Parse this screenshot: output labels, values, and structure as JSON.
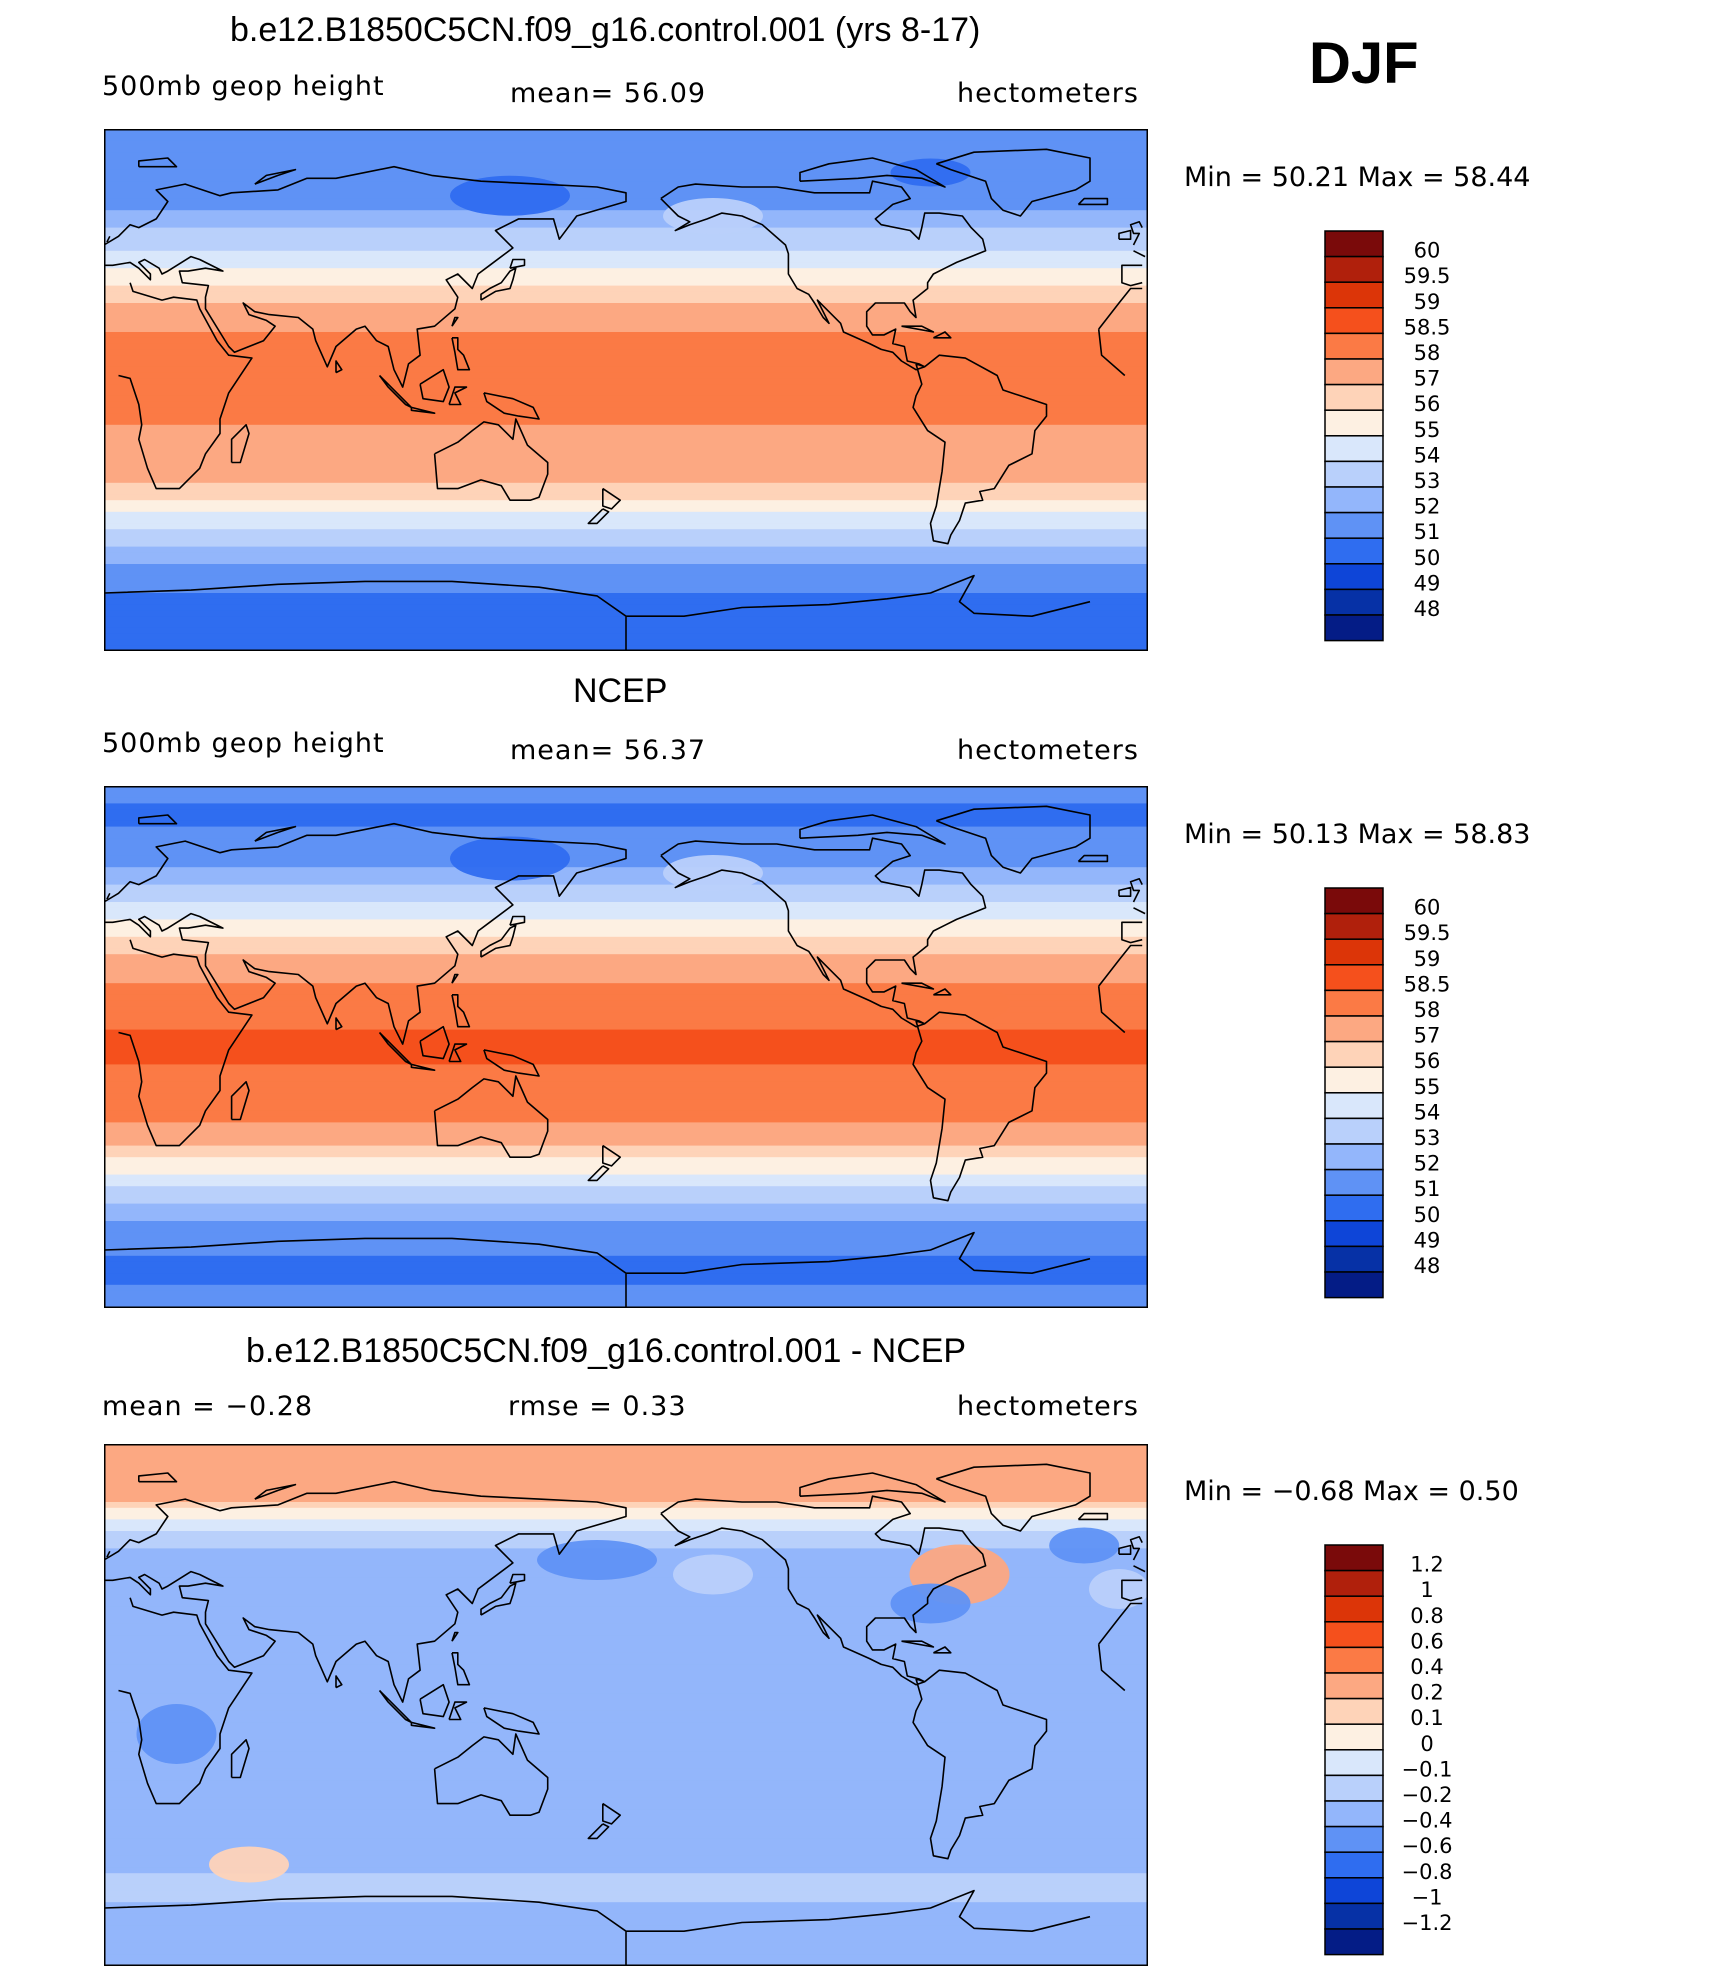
{
  "season": "DJF",
  "panels": [
    {
      "title": "b.e12.B1850C5CN.f09_g16.control.001 (yrs 8-17)",
      "left_label": "500mb  geop  height",
      "center_label": "mean=   56.09",
      "right_label": "hectometers",
      "min_max": "Min  =    50.21  Max  =    58.44"
    },
    {
      "title": "NCEP",
      "left_label": "500mb  geop  height",
      "center_label": "mean=   56.37",
      "right_label": "hectometers",
      "min_max": "Min  =    50.13  Max  =    58.83"
    },
    {
      "title": "b.e12.B1850C5CN.f09_g16.control.001 - NCEP",
      "left_label": "mean  =    −0.28",
      "center_label": "rmse  =     0.33",
      "right_label": "hectometers",
      "min_max": "Min  =    −0.68  Max  =      0.50"
    }
  ],
  "chart_data": [
    {
      "type": "heatmap",
      "title": "b.e12.B1850C5CN.f09_g16.control.001 (yrs 8-17)",
      "variable": "500mb geop height",
      "units": "hectometers",
      "mean": 56.09,
      "min": 50.21,
      "max": 58.44,
      "colorbar": {
        "labels": [
          "60",
          "59.5",
          "59",
          "58.5",
          "58",
          "57",
          "56",
          "55",
          "54",
          "53",
          "52",
          "51",
          "50",
          "49",
          "48"
        ],
        "colors": [
          "#7a0a0a",
          "#b0200c",
          "#dc3508",
          "#f5501c",
          "#fb7a45",
          "#fca882",
          "#fed3b8",
          "#fdf0e2",
          "#d9e7fb",
          "#b9d0fb",
          "#93b6fb",
          "#5f92f5",
          "#2f6df0",
          "#0e45d8",
          "#0631a6",
          "#041c86"
        ]
      },
      "latitude_bands_south_to_north": [
        {
          "lat": -90,
          "value": 51.0
        },
        {
          "lat": -75,
          "value": 50.6
        },
        {
          "lat": -62,
          "value": 51.6
        },
        {
          "lat": -50,
          "value": 53.5
        },
        {
          "lat": -42,
          "value": 55.2
        },
        {
          "lat": -35,
          "value": 56.6
        },
        {
          "lat": -25,
          "value": 57.8
        },
        {
          "lat": 0,
          "value": 58.2
        },
        {
          "lat": 18,
          "value": 58.1
        },
        {
          "lat": 28,
          "value": 57.3
        },
        {
          "lat": 35,
          "value": 56.2
        },
        {
          "lat": 45,
          "value": 54.6
        },
        {
          "lat": 55,
          "value": 53.0
        },
        {
          "lat": 65,
          "value": 51.6
        },
        {
          "lat": 80,
          "value": 51.1
        },
        {
          "lat": 90,
          "value": 51.6
        }
      ]
    },
    {
      "type": "heatmap",
      "title": "NCEP",
      "variable": "500mb geop height",
      "units": "hectometers",
      "mean": 56.37,
      "min": 50.13,
      "max": 58.83,
      "colorbar": {
        "labels": [
          "60",
          "59.5",
          "59",
          "58.5",
          "58",
          "57",
          "56",
          "55",
          "54",
          "53",
          "52",
          "51",
          "50",
          "49",
          "48"
        ],
        "colors": [
          "#7a0a0a",
          "#b0200c",
          "#dc3508",
          "#f5501c",
          "#fb7a45",
          "#fca882",
          "#fed3b8",
          "#fdf0e2",
          "#d9e7fb",
          "#b9d0fb",
          "#93b6fb",
          "#5f92f5",
          "#2f6df0",
          "#0e45d8",
          "#0631a6",
          "#041c86"
        ]
      },
      "latitude_bands_south_to_north": [
        {
          "lat": -90,
          "value": 51.2
        },
        {
          "lat": -75,
          "value": 50.8
        },
        {
          "lat": -62,
          "value": 51.8
        },
        {
          "lat": -50,
          "value": 53.6
        },
        {
          "lat": -42,
          "value": 55.3
        },
        {
          "lat": -35,
          "value": 56.7
        },
        {
          "lat": -25,
          "value": 58.2
        },
        {
          "lat": 0,
          "value": 58.6
        },
        {
          "lat": 18,
          "value": 58.3
        },
        {
          "lat": 28,
          "value": 57.5
        },
        {
          "lat": 35,
          "value": 56.4
        },
        {
          "lat": 45,
          "value": 54.7
        },
        {
          "lat": 55,
          "value": 53.1
        },
        {
          "lat": 65,
          "value": 51.6
        },
        {
          "lat": 80,
          "value": 50.8
        },
        {
          "lat": 90,
          "value": 51.2
        }
      ]
    },
    {
      "type": "heatmap",
      "title": "b.e12.B1850C5CN.f09_g16.control.001 - NCEP",
      "variable": "difference",
      "units": "hectometers",
      "mean": -0.28,
      "rmse": 0.33,
      "min": -0.68,
      "max": 0.5,
      "colorbar": {
        "labels": [
          "1.2",
          "1",
          "0.8",
          "0.6",
          "0.4",
          "0.2",
          "0.1",
          "0",
          "−0.1",
          "−0.2",
          "−0.4",
          "−0.6",
          "−0.8",
          "−1",
          "−1.2"
        ],
        "colors": [
          "#7a0a0a",
          "#b0200c",
          "#dc3508",
          "#f5501c",
          "#fb7a45",
          "#fca882",
          "#fed3b8",
          "#fdf0e2",
          "#d9e7fb",
          "#b9d0fb",
          "#93b6fb",
          "#5f92f5",
          "#2f6df0",
          "#0e45d8",
          "#0631a6",
          "#041c86"
        ]
      },
      "latitude_bands_south_to_north": [
        {
          "lat": -90,
          "value": -0.3
        },
        {
          "lat": -75,
          "value": -0.22
        },
        {
          "lat": -62,
          "value": -0.18
        },
        {
          "lat": -50,
          "value": -0.25
        },
        {
          "lat": -35,
          "value": -0.32
        },
        {
          "lat": -15,
          "value": -0.3
        },
        {
          "lat": 0,
          "value": -0.35
        },
        {
          "lat": 20,
          "value": -0.3
        },
        {
          "lat": 35,
          "value": -0.25
        },
        {
          "lat": 45,
          "value": -0.3
        },
        {
          "lat": 55,
          "value": -0.2
        },
        {
          "lat": 65,
          "value": 0.0
        },
        {
          "lat": 75,
          "value": 0.35
        },
        {
          "lat": 90,
          "value": 0.4
        }
      ]
    }
  ]
}
